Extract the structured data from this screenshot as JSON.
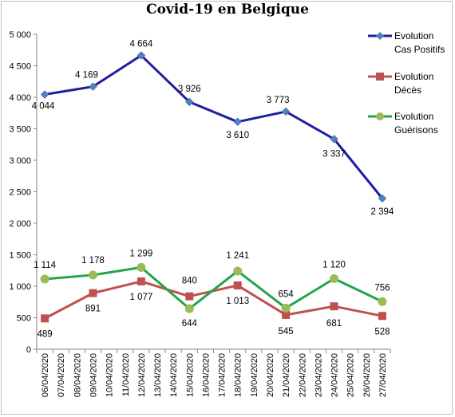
{
  "chart_data": {
    "type": "line",
    "title": "Covid-19 en Belgique",
    "xlabel": "",
    "ylabel": "",
    "ylim": [
      0,
      5000
    ],
    "yticks": [
      0,
      500,
      1000,
      1500,
      2000,
      2500,
      3000,
      3500,
      4000,
      4500,
      5000
    ],
    "ytick_labels": [
      "0",
      "500",
      "1 000",
      "1 500",
      "2 000",
      "2 500",
      "3 000",
      "3 500",
      "4 000",
      "4 500",
      "5 000"
    ],
    "categories": [
      "06/04/2020",
      "07/04/2020",
      "08/04/2020",
      "09/04/2020",
      "10/04/2020",
      "11/04/2020",
      "12/04/2020",
      "13/04/2020",
      "14/04/2020",
      "15/04/2020",
      "16/04/2020",
      "17/04/2020",
      "18/04/2020",
      "19/04/2020",
      "20/04/2020",
      "21/04/2020",
      "22/04/2020",
      "23/04/2020",
      "24/04/2020",
      "25/04/2020",
      "26/04/2020",
      "27/04/2020"
    ],
    "grid": false,
    "legend_position": "right",
    "series": [
      {
        "name": "Evolution Cas Positifs",
        "legend_lines": [
          "Evolution",
          "Cas Positifs"
        ],
        "color": "#1f1f9f",
        "marker": "diamond",
        "points": [
          {
            "x": "06/04/2020",
            "y": 4044,
            "label": "4 044"
          },
          {
            "x": "09/04/2020",
            "y": 4169,
            "label": "4 169"
          },
          {
            "x": "12/04/2020",
            "y": 4664,
            "label": "4 664"
          },
          {
            "x": "15/04/2020",
            "y": 3926,
            "label": "3 926"
          },
          {
            "x": "18/04/2020",
            "y": 3610,
            "label": "3 610"
          },
          {
            "x": "21/04/2020",
            "y": 3773,
            "label": "3 773"
          },
          {
            "x": "24/04/2020",
            "y": 3337,
            "label": "3 337"
          },
          {
            "x": "27/04/2020",
            "y": 2394,
            "label": "2 394"
          }
        ]
      },
      {
        "name": "Evolution Décès",
        "legend_lines": [
          "Evolution",
          "Décès"
        ],
        "color": "#c0504d",
        "marker": "square",
        "points": [
          {
            "x": "06/04/2020",
            "y": 489,
            "label": "489"
          },
          {
            "x": "09/04/2020",
            "y": 891,
            "label": "891"
          },
          {
            "x": "12/04/2020",
            "y": 1077,
            "label": "1 077"
          },
          {
            "x": "15/04/2020",
            "y": 840,
            "label": "840"
          },
          {
            "x": "18/04/2020",
            "y": 1013,
            "label": "1 013"
          },
          {
            "x": "21/04/2020",
            "y": 545,
            "label": "545"
          },
          {
            "x": "24/04/2020",
            "y": 681,
            "label": "681"
          },
          {
            "x": "27/04/2020",
            "y": 528,
            "label": "528"
          }
        ]
      },
      {
        "name": "Evolution Guérisons",
        "legend_lines": [
          "Evolution",
          "Guérisons"
        ],
        "color": "#22a64a",
        "marker_color": "#9bbb59",
        "marker": "circle",
        "points": [
          {
            "x": "06/04/2020",
            "y": 1114,
            "label": "1 114"
          },
          {
            "x": "09/04/2020",
            "y": 1178,
            "label": "1 178"
          },
          {
            "x": "12/04/2020",
            "y": 1299,
            "label": "1 299"
          },
          {
            "x": "15/04/2020",
            "y": 644,
            "label": "644"
          },
          {
            "x": "18/04/2020",
            "y": 1241,
            "label": "1 241"
          },
          {
            "x": "21/04/2020",
            "y": 654,
            "label": "654"
          },
          {
            "x": "24/04/2020",
            "y": 1120,
            "label": "1 120"
          },
          {
            "x": "27/04/2020",
            "y": 756,
            "label": "756"
          }
        ]
      }
    ]
  }
}
